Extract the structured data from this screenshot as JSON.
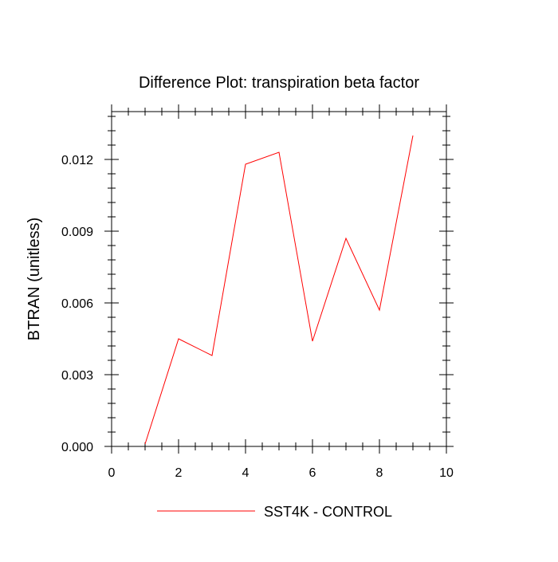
{
  "chart_data": {
    "type": "line",
    "title": "Difference Plot: transpiration beta factor",
    "xlabel": "",
    "ylabel": "BTRAN  (unitless)",
    "xlim": [
      0,
      10
    ],
    "ylim": [
      0,
      0.014
    ],
    "x_ticks": [
      0,
      2,
      4,
      6,
      8,
      10
    ],
    "x_tick_labels": [
      "0",
      "2",
      "4",
      "6",
      "8",
      "10"
    ],
    "y_ticks": [
      0,
      0.003,
      0.006,
      0.009,
      0.012
    ],
    "y_tick_labels": [
      "0.000",
      "0.003",
      "0.006",
      "0.009",
      "0.012"
    ],
    "x_minor_step": 0.5,
    "y_minor_step": 0.0006,
    "grid": false,
    "legend_position": "bottom-center",
    "series": [
      {
        "name": "SST4K - CONTROL",
        "color": "#ff0000",
        "x": [
          1,
          2,
          3,
          4,
          5,
          6,
          7,
          8,
          9
        ],
        "y": [
          0.0001,
          0.0045,
          0.0038,
          0.0118,
          0.0123,
          0.0044,
          0.0087,
          0.0057,
          0.013
        ]
      }
    ]
  }
}
